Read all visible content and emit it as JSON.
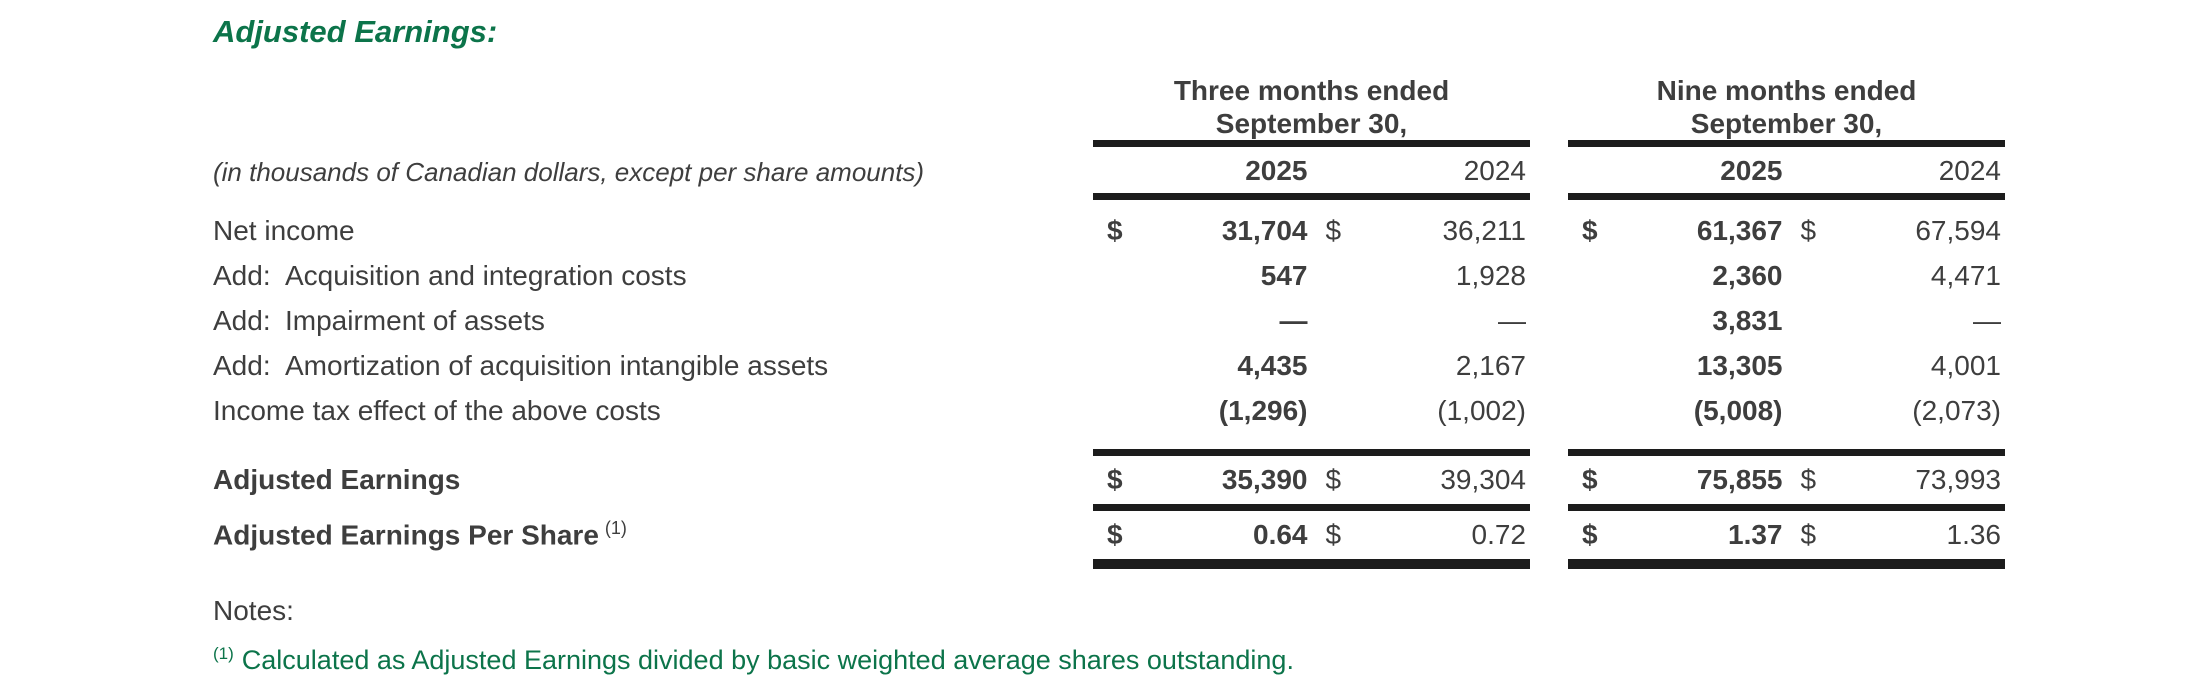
{
  "section": {
    "title": "Adjusted Earnings:"
  },
  "table": {
    "units_note": "(in thousands of Canadian dollars, except per share amounts)",
    "groups": [
      {
        "line1": "Three months ended",
        "line2": "September 30,"
      },
      {
        "line1": "Nine months ended",
        "line2": "September 30,"
      }
    ],
    "years": [
      "2025",
      "2024",
      "2025",
      "2024"
    ],
    "rows": [
      {
        "label": "Net income",
        "cells": [
          {
            "cur": "$",
            "val": "31,704"
          },
          {
            "cur": "$",
            "val": "36,211"
          },
          {
            "cur": "$",
            "val": "61,367"
          },
          {
            "cur": "$",
            "val": "67,594"
          }
        ]
      },
      {
        "label_prefix": "Add:",
        "label": "Acquisition and integration costs",
        "cells": [
          {
            "cur": "",
            "val": "547"
          },
          {
            "cur": "",
            "val": "1,928"
          },
          {
            "cur": "",
            "val": "2,360"
          },
          {
            "cur": "",
            "val": "4,471"
          }
        ]
      },
      {
        "label_prefix": "Add:",
        "label": "Impairment of assets",
        "cells": [
          {
            "cur": "",
            "val": "—"
          },
          {
            "cur": "",
            "val": "—"
          },
          {
            "cur": "",
            "val": "3,831"
          },
          {
            "cur": "",
            "val": "—"
          }
        ]
      },
      {
        "label_prefix": "Add:",
        "label": "Amortization of acquisition intangible assets",
        "cells": [
          {
            "cur": "",
            "val": "4,435"
          },
          {
            "cur": "",
            "val": "2,167"
          },
          {
            "cur": "",
            "val": "13,305"
          },
          {
            "cur": "",
            "val": "4,001"
          }
        ]
      },
      {
        "label": "Income tax effect of the above costs",
        "cells": [
          {
            "cur": "",
            "val": "(1,296)"
          },
          {
            "cur": "",
            "val": "(1,002)"
          },
          {
            "cur": "",
            "val": "(5,008)"
          },
          {
            "cur": "",
            "val": "(2,073)"
          }
        ]
      },
      {
        "label": "Adjusted Earnings",
        "bold_label": true,
        "tall": true,
        "rule_above": true,
        "rule_below": "normal",
        "cells": [
          {
            "cur": "$",
            "val": "35,390"
          },
          {
            "cur": "$",
            "val": "39,304"
          },
          {
            "cur": "$",
            "val": "75,855"
          },
          {
            "cur": "$",
            "val": "73,993"
          }
        ]
      },
      {
        "label": "Adjusted Earnings Per Share",
        "label_sup": "(1)",
        "bold_label": true,
        "tall": true,
        "rule_below": "heavy",
        "cells": [
          {
            "cur": "$",
            "val": "0.64"
          },
          {
            "cur": "$",
            "val": "0.72"
          },
          {
            "cur": "$",
            "val": "1.37"
          },
          {
            "cur": "$",
            "val": "1.36"
          }
        ]
      }
    ]
  },
  "notes": {
    "label": "Notes:",
    "footnote_marker": "(1)",
    "footnote_text": "Calculated as Adjusted Earnings divided by basic weighted average shares outstanding."
  },
  "colors": {
    "accent_green": "#0c744a",
    "body_text": "#3e3e3e",
    "rule_black": "#1c1c1c"
  }
}
